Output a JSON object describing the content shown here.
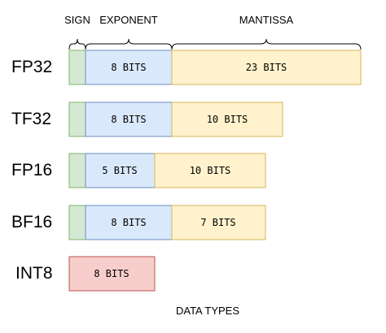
{
  "headers": {
    "sign": "SIGN",
    "exponent": "EXPONENT",
    "mantissa": "MANTISSA"
  },
  "colors": {
    "sign_fill": "#d5e8d4",
    "sign_stroke": "#82b366",
    "exponent_fill": "#dae8fc",
    "exponent_stroke": "#6c8ebf",
    "mantissa_fill": "#fff2cc",
    "mantissa_stroke": "#d6b656",
    "int_fill": "#f8cecc",
    "int_stroke": "#b85450"
  },
  "rows": [
    {
      "label": "FP32",
      "exponent_label": "8 BITS",
      "mantissa_label": "23 BITS"
    },
    {
      "label": "TF32",
      "exponent_label": "8 BITS",
      "mantissa_label": "10 BITS"
    },
    {
      "label": "FP16",
      "exponent_label": "5 BITS",
      "mantissa_label": "10 BITS"
    },
    {
      "label": "BF16",
      "exponent_label": "8 BITS",
      "mantissa_label": "7 BITS"
    }
  ],
  "int8": {
    "label": "INT8",
    "bits_label": "8 BITS"
  },
  "caption": "DATA TYPES"
}
